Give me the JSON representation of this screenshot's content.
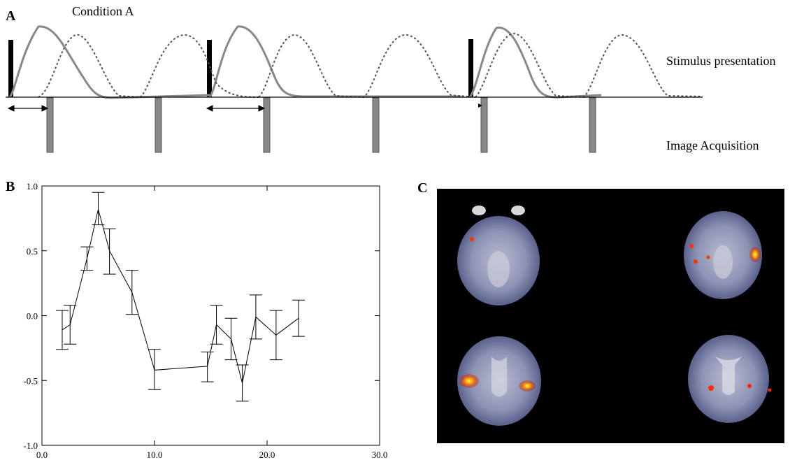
{
  "panel_a": {
    "letter": "A",
    "condition_label": "Condition A",
    "stimulus_label": "Stimulus presentation",
    "acquisition_label": "Image Acquisition"
  },
  "panel_b": {
    "letter": "B"
  },
  "panel_c": {
    "letter": "C"
  },
  "chart_data": {
    "type": "line",
    "xlim": [
      0,
      30
    ],
    "ylim": [
      -1,
      1
    ],
    "xticks": [
      0,
      10,
      20,
      30
    ],
    "xtick_labels": [
      "0.0",
      "10.0",
      "20.0",
      "30.0"
    ],
    "yticks": [
      -1,
      -0.5,
      0,
      0.5,
      1
    ],
    "ytick_labels": [
      "-1.0",
      "-0.5",
      "0.0",
      "0.5",
      "1.0"
    ],
    "grid": false,
    "series": [
      {
        "x": [
          1.8,
          2.5,
          4.0,
          5.0,
          6.0,
          8.0,
          10.0,
          14.7,
          15.5,
          16.8,
          17.8,
          19.0,
          20.8,
          22.8
        ],
        "y": [
          -0.11,
          -0.07,
          0.44,
          0.82,
          0.5,
          0.18,
          -0.42,
          -0.39,
          -0.07,
          -0.18,
          -0.52,
          -0.01,
          -0.15,
          -0.02
        ],
        "err_lo": [
          -0.26,
          -0.22,
          0.35,
          0.7,
          0.32,
          0.01,
          -0.57,
          -0.51,
          -0.22,
          -0.34,
          -0.66,
          -0.18,
          -0.34,
          -0.16
        ],
        "err_hi": [
          0.04,
          0.08,
          0.53,
          0.95,
          0.67,
          0.35,
          -0.26,
          -0.28,
          0.08,
          -0.02,
          -0.38,
          0.16,
          0.04,
          0.12
        ]
      }
    ]
  }
}
